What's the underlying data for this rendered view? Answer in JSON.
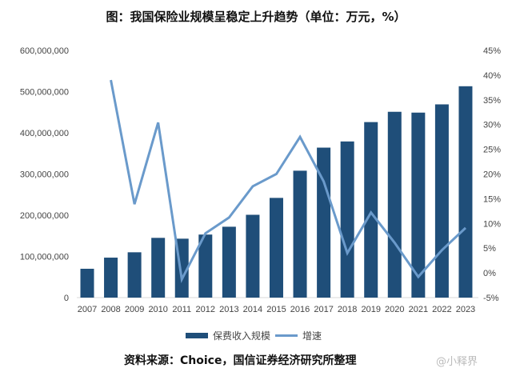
{
  "chart_data": {
    "type": "bar+line",
    "title": "图：我国保险业规模呈稳定上升趋势（单位：万元，%）",
    "categories": [
      "2007",
      "2008",
      "2009",
      "2010",
      "2011",
      "2012",
      "2013",
      "2014",
      "2015",
      "2016",
      "2017",
      "2018",
      "2019",
      "2020",
      "2021",
      "2022",
      "2023"
    ],
    "series": [
      {
        "name": "保费收入规模",
        "type": "bar",
        "axis": "left",
        "color": "#1f4e79",
        "values": [
          70000000,
          97000000,
          110000000,
          145000000,
          143000000,
          153000000,
          172000000,
          201000000,
          242000000,
          308000000,
          364000000,
          379000000,
          426000000,
          451000000,
          449000000,
          469000000,
          513000000
        ]
      },
      {
        "name": "增速",
        "type": "line",
        "axis": "right",
        "color": "#6a9acb",
        "values": [
          null,
          39.0,
          13.9,
          30.4,
          -1.3,
          8.0,
          11.2,
          17.5,
          20.0,
          27.5,
          18.5,
          4.0,
          12.2,
          6.1,
          -0.8,
          4.6,
          9.1
        ]
      }
    ],
    "y_left": {
      "range": [
        0,
        600000000
      ],
      "ticks": [
        "0",
        "100,000,000",
        "200,000,000",
        "300,000,000",
        "400,000,000",
        "500,000,000",
        "600,000,000"
      ]
    },
    "y_right": {
      "range": [
        -5,
        45
      ],
      "ticks": [
        "-5%",
        "0%",
        "5%",
        "10%",
        "15%",
        "20%",
        "25%",
        "30%",
        "35%",
        "40%",
        "45%"
      ]
    },
    "grid": false,
    "legend_placement": "bottom"
  },
  "source": "资料来源：Choice，国信证券经济研究所整理",
  "watermark": "@小释界"
}
